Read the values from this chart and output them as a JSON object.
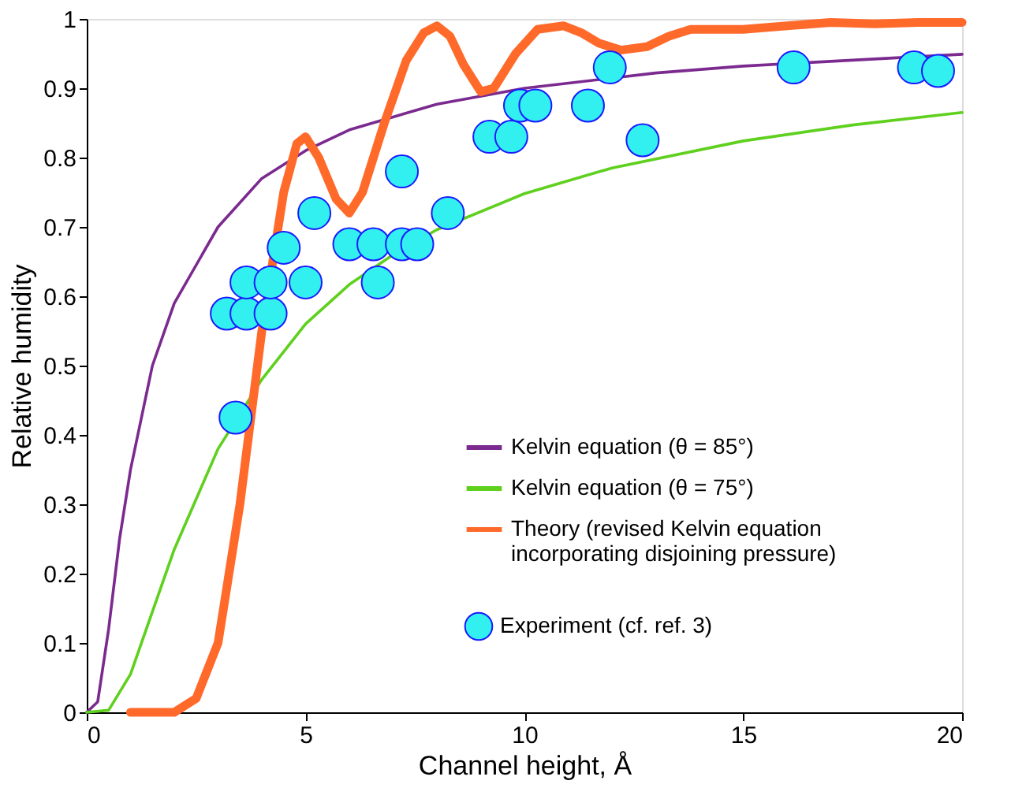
{
  "chart_data": {
    "type": "line",
    "xlabel": "Channel height, Å",
    "ylabel": "Relative humidity",
    "xlim": [
      0,
      20
    ],
    "ylim": [
      0,
      1
    ],
    "xticks": [
      0,
      5,
      10,
      15,
      20
    ],
    "yticks": [
      0,
      0.1,
      0.2,
      0.3,
      0.4,
      0.5,
      0.6,
      0.7,
      0.8,
      0.9,
      1
    ],
    "grid": false,
    "legend": "bottom right",
    "marker": "none",
    "series": [
      {
        "name": "Kelvin equation (θ = 85°)",
        "color": "#7b2a8f",
        "x": [
          0,
          0.25,
          0.5,
          0.75,
          1,
          1.5,
          2,
          3,
          4,
          5,
          6,
          8,
          10,
          13,
          15,
          20
        ],
        "values": [
          0,
          0.015,
          0.12,
          0.25,
          0.35,
          0.5,
          0.59,
          0.7,
          0.77,
          0.81,
          0.84,
          0.877,
          0.9,
          0.922,
          0.932,
          0.949
        ]
      },
      {
        "name": "Kelvin equation (θ = 75°)",
        "color": "#5fd01e",
        "x": [
          0,
          0.5,
          1,
          1.5,
          2,
          3,
          4,
          5,
          6,
          7,
          8,
          10,
          12,
          15,
          17.5,
          20
        ],
        "values": [
          0,
          0.003,
          0.055,
          0.145,
          0.235,
          0.38,
          0.48,
          0.56,
          0.617,
          0.66,
          0.696,
          0.748,
          0.785,
          0.824,
          0.847,
          0.865
        ]
      },
      {
        "name": "Theory (revised Kelvin equation\nincorporating disjoining pressure)",
        "color": "#ff6a2b",
        "x": [
          1,
          2,
          2.5,
          3,
          3.5,
          4,
          4.5,
          4.8,
          5,
          5.3,
          5.7,
          6,
          6.3,
          6.8,
          7.3,
          7.7,
          8,
          8.3,
          8.6,
          9,
          9.3,
          9.8,
          10.3,
          10.9,
          11.3,
          11.7,
          12.2,
          12.8,
          13.3,
          13.8,
          14.3,
          15,
          16,
          17,
          18,
          19,
          20
        ],
        "values": [
          0,
          0,
          0.02,
          0.1,
          0.3,
          0.55,
          0.75,
          0.82,
          0.83,
          0.8,
          0.74,
          0.72,
          0.75,
          0.85,
          0.94,
          0.98,
          0.99,
          0.975,
          0.935,
          0.895,
          0.9,
          0.95,
          0.985,
          0.99,
          0.98,
          0.965,
          0.955,
          0.96,
          0.975,
          0.985,
          0.985,
          0.985,
          0.99,
          0.995,
          0.993,
          0.995,
          0.995
        ]
      },
      {
        "name": "Experiment (cf. ref. 3)",
        "type": "scatter",
        "marker": "circle",
        "color": "#33f0f0",
        "x": [
          3.2,
          3.4,
          3.65,
          3.65,
          4.2,
          4.2,
          4.5,
          5.0,
          5.2,
          6.0,
          6.55,
          6.65,
          7.2,
          7.2,
          7.55,
          8.25,
          9.2,
          9.7,
          9.9,
          10.25,
          11.45,
          11.95,
          12.7,
          16.15,
          18.9,
          19.45
        ],
        "values": [
          0.575,
          0.425,
          0.575,
          0.62,
          0.575,
          0.62,
          0.67,
          0.62,
          0.72,
          0.675,
          0.675,
          0.62,
          0.78,
          0.675,
          0.675,
          0.72,
          0.83,
          0.83,
          0.875,
          0.875,
          0.875,
          0.93,
          0.825,
          0.93,
          0.93,
          0.925
        ]
      }
    ]
  }
}
